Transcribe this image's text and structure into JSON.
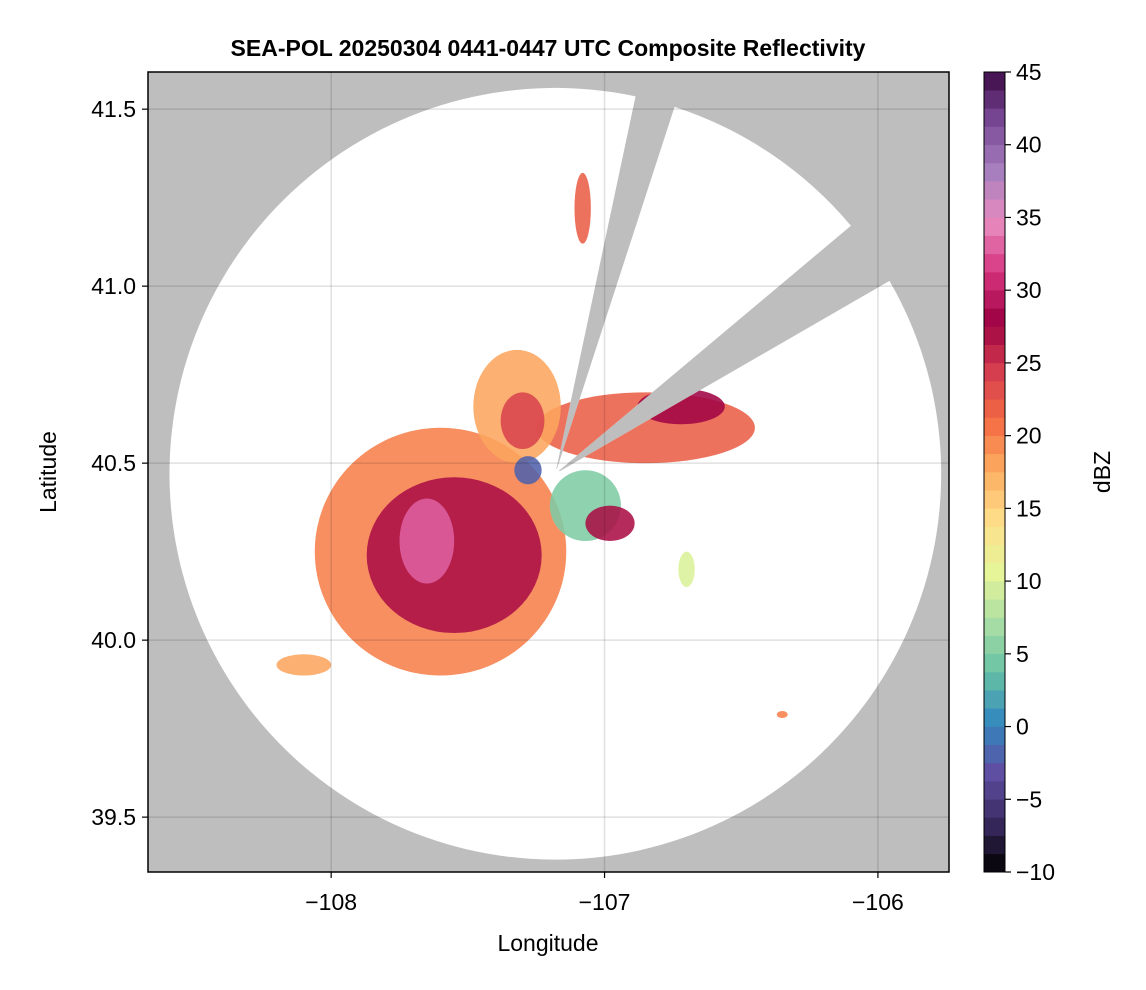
{
  "chart_data": {
    "type": "heatmap",
    "title": "SEA-POL 20250304 0441-0447 UTC Composite Reflectivity",
    "xlabel": "Longitude",
    "ylabel": "Latitude",
    "xlim": [
      -108.67,
      -105.74
    ],
    "ylim": [
      39.345,
      41.605
    ],
    "x_ticks": [
      -108,
      -107,
      -106
    ],
    "x_tick_labels": [
      "−108",
      "−107",
      "−106"
    ],
    "y_ticks": [
      39.5,
      40.0,
      40.5,
      41.0,
      41.5
    ],
    "y_tick_labels": [
      "39.5",
      "40.0",
      "40.5",
      "41.0",
      "41.5"
    ],
    "grid": true,
    "background_color": "#bebebe",
    "coverage_color": "#ffffff",
    "radar": {
      "center_lon": -107.18,
      "center_lat": 40.47,
      "range_lat_deg": 1.09,
      "blocked_sectors_bearing_deg": [
        [
          12,
          18
        ],
        [
          50,
          60
        ]
      ]
    },
    "colorbar": {
      "label": "dBZ",
      "range": [
        -10,
        45
      ],
      "ticks": [
        -10,
        -5,
        0,
        5,
        10,
        15,
        20,
        25,
        30,
        35,
        40,
        45
      ],
      "tick_labels": [
        "−10",
        "−5",
        "0",
        "5",
        "10",
        "15",
        "20",
        "25",
        "30",
        "35",
        "40",
        "45"
      ],
      "colormap": "Spectral_r",
      "colors_low_to_high": [
        "#000000",
        "#3a2a62",
        "#5e4fa2",
        "#3288bd",
        "#66c2a5",
        "#abdda4",
        "#e6f598",
        "#fee08b",
        "#fdae61",
        "#f46d43",
        "#d53e4f",
        "#9e0142",
        "#d6347f",
        "#e88bbf",
        "#a77fbe",
        "#7b4b99",
        "#3d0a45"
      ]
    },
    "echo_regions": [
      {
        "name": "main-complex",
        "lon": -107.6,
        "lat": 40.25,
        "rx_deg": 0.46,
        "ry_deg": 0.35,
        "dbz": 20
      },
      {
        "name": "main-complex-core",
        "lon": -107.55,
        "lat": 40.24,
        "rx_deg": 0.32,
        "ry_deg": 0.22,
        "dbz": 27
      },
      {
        "name": "main-complex-peak",
        "lon": -107.65,
        "lat": 40.28,
        "rx_deg": 0.1,
        "ry_deg": 0.12,
        "dbz": 33
      },
      {
        "name": "east-band",
        "lon": -106.85,
        "lat": 40.6,
        "rx_deg": 0.4,
        "ry_deg": 0.1,
        "dbz": 22
      },
      {
        "name": "east-band-core",
        "lon": -106.72,
        "lat": 40.66,
        "rx_deg": 0.16,
        "ry_deg": 0.05,
        "dbz": 28
      },
      {
        "name": "north-cell",
        "lon": -107.32,
        "lat": 40.66,
        "rx_deg": 0.16,
        "ry_deg": 0.16,
        "dbz": 18
      },
      {
        "name": "north-cell-core",
        "lon": -107.3,
        "lat": 40.62,
        "rx_deg": 0.08,
        "ry_deg": 0.08,
        "dbz": 24
      },
      {
        "name": "near-radar-weak",
        "lon": -107.07,
        "lat": 40.38,
        "rx_deg": 0.13,
        "ry_deg": 0.1,
        "dbz": 5
      },
      {
        "name": "south-east-cell",
        "lon": -106.98,
        "lat": 40.33,
        "rx_deg": 0.09,
        "ry_deg": 0.05,
        "dbz": 27
      },
      {
        "name": "near-radar-clutter",
        "lon": -107.28,
        "lat": 40.48,
        "rx_deg": 0.05,
        "ry_deg": 0.04,
        "dbz": -2
      },
      {
        "name": "far-north-cells",
        "lon": -107.08,
        "lat": 41.22,
        "rx_deg": 0.03,
        "ry_deg": 0.1,
        "dbz": 22
      },
      {
        "name": "southwest-streak",
        "lon": -108.1,
        "lat": 39.93,
        "rx_deg": 0.1,
        "ry_deg": 0.03,
        "dbz": 18
      },
      {
        "name": "east-small-cell",
        "lon": -106.7,
        "lat": 40.2,
        "rx_deg": 0.03,
        "ry_deg": 0.05,
        "dbz": 10
      },
      {
        "name": "southeast-speck",
        "lon": -106.35,
        "lat": 39.79,
        "rx_deg": 0.02,
        "ry_deg": 0.01,
        "dbz": 20
      }
    ]
  }
}
